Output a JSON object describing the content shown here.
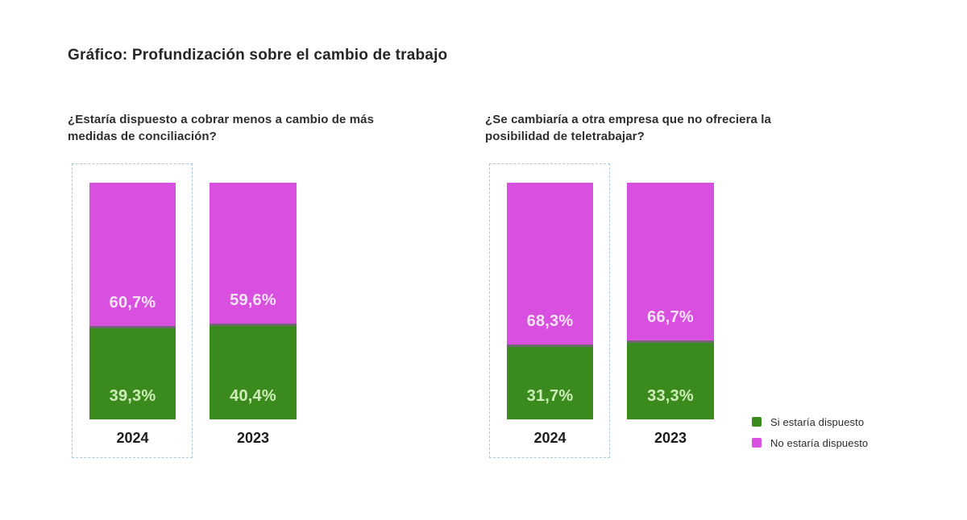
{
  "title": "Gráfico: Profundización sobre el cambio de trabajo",
  "colors": {
    "yes": "#3a8a1e",
    "no": "#d94fe0",
    "dashed_border": "#a9c6da"
  },
  "legend": {
    "items": [
      {
        "label": "Si estaría dispuesto",
        "color": "#3a8a1e"
      },
      {
        "label": "No estaría dispuesto",
        "color": "#d94fe0"
      }
    ],
    "position": "bottom-right"
  },
  "chart_data": [
    {
      "type": "bar",
      "stacked": true,
      "title": "¿Estaría dispuesto a cobrar menos a cambio de más medidas de conciliación?",
      "categories": [
        "2024",
        "2023"
      ],
      "series": [
        {
          "name": "Si estaría dispuesto",
          "values": [
            39.3,
            40.4
          ],
          "labels": [
            "39,3%",
            "40,4%"
          ]
        },
        {
          "name": "No estaría dispuesto",
          "values": [
            60.7,
            59.6
          ],
          "labels": [
            "60,7%",
            "59,6%"
          ]
        }
      ],
      "highlighted_category": "2024",
      "ylim": [
        0,
        100
      ],
      "grid": false
    },
    {
      "type": "bar",
      "stacked": true,
      "title": "¿Se cambiaría a otra empresa que no ofreciera la posibilidad de teletrabajar?",
      "categories": [
        "2024",
        "2023"
      ],
      "series": [
        {
          "name": "Si estaría dispuesto",
          "values": [
            31.7,
            33.3
          ],
          "labels": [
            "31,7%",
            "33,3%"
          ]
        },
        {
          "name": "No estaría dispuesto",
          "values": [
            68.3,
            66.7
          ],
          "labels": [
            "68,3%",
            "66,7%"
          ]
        }
      ],
      "highlighted_category": "2024",
      "ylim": [
        0,
        100
      ],
      "grid": false
    }
  ]
}
